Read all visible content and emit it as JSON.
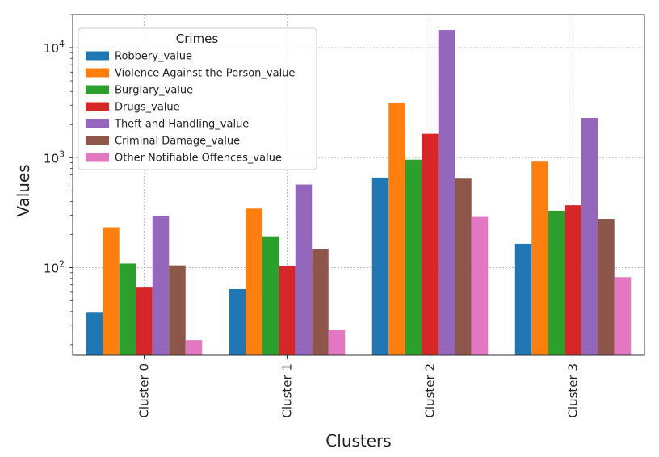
{
  "chart_data": {
    "type": "bar",
    "title": "",
    "xlabel": "Clusters",
    "ylabel": "Values",
    "yscale": "log",
    "ylim": [
      16,
      20000
    ],
    "yticks": [
      100,
      1000,
      10000
    ],
    "ytick_labels": [
      {
        "base": "10",
        "exp": "2"
      },
      {
        "base": "10",
        "exp": "3"
      },
      {
        "base": "10",
        "exp": "4"
      }
    ],
    "grid": true,
    "legend_title": "Crimes",
    "legend_position": "top-left",
    "categories": [
      "Cluster 0",
      "Cluster 1",
      "Cluster 2",
      "Cluster 3"
    ],
    "series": [
      {
        "name": "Robbery_value",
        "color": "#1f77b4",
        "values": [
          39,
          64,
          660,
          165
        ]
      },
      {
        "name": "Violence Against the Person_value",
        "color": "#ff7f0e",
        "values": [
          233,
          345,
          3150,
          920
        ]
      },
      {
        "name": "Burglary_value",
        "color": "#2ca02c",
        "values": [
          109,
          193,
          960,
          330
        ]
      },
      {
        "name": "Drugs_value",
        "color": "#d62728",
        "values": [
          66,
          103,
          1650,
          370
        ]
      },
      {
        "name": "Theft and Handling_value",
        "color": "#9467bd",
        "values": [
          297,
          570,
          14500,
          2300
        ]
      },
      {
        "name": "Criminal Damage_value",
        "color": "#8c564b",
        "values": [
          105,
          147,
          645,
          278
        ]
      },
      {
        "name": "Other Notifiable Offences_value",
        "color": "#e377c2",
        "values": [
          22,
          27,
          290,
          82
        ]
      }
    ]
  }
}
